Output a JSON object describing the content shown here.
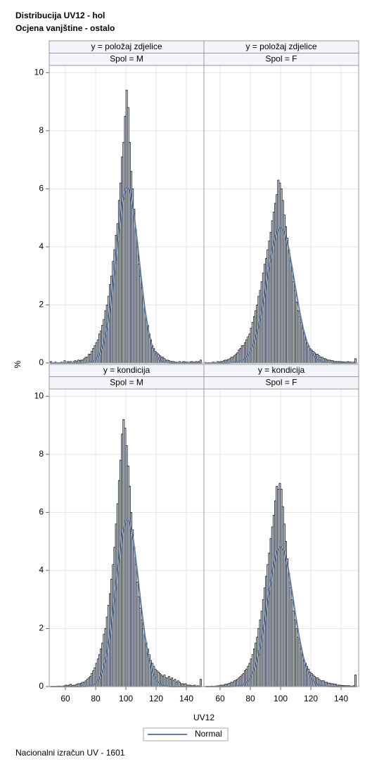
{
  "title": [
    "Distribucija UV12 - hol",
    "Ocjena vanjštine - ostalo"
  ],
  "x_label": "UV12",
  "y_label": "%",
  "legend": {
    "label": "Normal"
  },
  "footnote": "Nacionalni izračun UV - 1601",
  "chart_data": [
    {
      "type": "histogram",
      "strips": [
        "y = položaj zdjelice",
        "Spol = M"
      ],
      "color": "#cfd8e6",
      "xlim": [
        49.3,
        151.6
      ],
      "xticks": [
        60,
        80,
        100,
        120,
        140
      ],
      "ylim": [
        0,
        10.25
      ],
      "yticks": [
        0,
        2,
        4,
        6,
        8,
        10
      ],
      "grid": true,
      "bins": [
        50,
        51,
        52,
        53,
        54,
        55,
        56,
        57,
        58,
        59,
        60,
        61,
        62,
        63,
        64,
        65,
        66,
        67,
        68,
        69,
        70,
        71,
        72,
        73,
        74,
        75,
        76,
        77,
        78,
        79,
        80,
        81,
        82,
        83,
        84,
        85,
        86,
        87,
        88,
        89,
        90,
        91,
        92,
        93,
        94,
        95,
        96,
        97,
        98,
        99,
        100,
        101,
        102,
        103,
        104,
        105,
        106,
        107,
        108,
        109,
        110,
        111,
        112,
        113,
        114,
        115,
        116,
        117,
        118,
        119,
        120,
        121,
        122,
        123,
        124,
        125,
        126,
        127,
        128,
        129,
        130,
        131,
        132,
        133,
        134,
        135,
        136,
        137,
        138,
        139,
        140,
        141,
        142,
        143,
        144,
        145,
        146,
        147,
        148,
        149,
        150
      ],
      "values": [
        0.05,
        0,
        0,
        0.03,
        0,
        0,
        0,
        0.03,
        0,
        0.08,
        0,
        0.05,
        0.03,
        0.05,
        0,
        0.05,
        0.08,
        0.05,
        0.1,
        0.08,
        0.1,
        0.1,
        0.15,
        0.2,
        0.2,
        0.3,
        0.3,
        0.4,
        0.5,
        0.6,
        0.7,
        0.8,
        1.0,
        1.1,
        1.3,
        1.5,
        1.8,
        2.0,
        2.3,
        2.7,
        3.0,
        3.5,
        3.9,
        4.4,
        4.8,
        5.6,
        6.2,
        7.1,
        7.6,
        8.5,
        9.4,
        8.8,
        7.6,
        6.6,
        6.0,
        5.3,
        4.6,
        4.0,
        3.4,
        3.0,
        2.6,
        2.2,
        1.8,
        1.5,
        1.3,
        1.0,
        0.8,
        0.6,
        0.5,
        0.4,
        0.35,
        0.3,
        0.25,
        0.2,
        0.2,
        0.15,
        0.1,
        0.1,
        0.08,
        0.05,
        0.05,
        0.05,
        0.03,
        0.03,
        0.02,
        0.05,
        0.02,
        0.03,
        0.05,
        0.03,
        0.03,
        0.02,
        0.03,
        0.05,
        0.03,
        0.03,
        0.05,
        0.03,
        0.05,
        0.1
      ],
      "normal": {
        "color": "#667d9f",
        "x": [
          50,
          55,
          60,
          65,
          70,
          75,
          77.5,
          80,
          82.5,
          85,
          87.5,
          90,
          92.5,
          95,
          97.5,
          100,
          102.5,
          105,
          107.5,
          110,
          112.5,
          115,
          117.5,
          120,
          122.5,
          125,
          127.5,
          130,
          135,
          140,
          145,
          150
        ],
        "values": [
          0,
          0,
          0,
          0,
          0,
          0.01,
          0.05,
          0.12,
          0.29,
          0.63,
          1.21,
          2.08,
          3.21,
          4.43,
          5.47,
          6.05,
          5.98,
          5.29,
          4.19,
          2.97,
          1.88,
          1.07,
          0.54,
          0.25,
          0.1,
          0.04,
          0.01,
          0,
          0,
          0,
          0,
          0
        ]
      }
    },
    {
      "type": "histogram",
      "strips": [
        "y = položaj zdjelice",
        "Spol = F"
      ],
      "color": "#cfd8e6",
      "xlim": [
        49.3,
        151.6
      ],
      "xticks": [
        60,
        80,
        100,
        120,
        140
      ],
      "ylim": [
        0,
        10.25
      ],
      "yticks": [
        0,
        2,
        4,
        6,
        8,
        10
      ],
      "grid": true,
      "bins": [
        50,
        51,
        52,
        53,
        54,
        55,
        56,
        57,
        58,
        59,
        60,
        61,
        62,
        63,
        64,
        65,
        66,
        67,
        68,
        69,
        70,
        71,
        72,
        73,
        74,
        75,
        76,
        77,
        78,
        79,
        80,
        81,
        82,
        83,
        84,
        85,
        86,
        87,
        88,
        89,
        90,
        91,
        92,
        93,
        94,
        95,
        96,
        97,
        98,
        99,
        100,
        101,
        102,
        103,
        104,
        105,
        106,
        107,
        108,
        109,
        110,
        111,
        112,
        113,
        114,
        115,
        116,
        117,
        118,
        119,
        120,
        121,
        122,
        123,
        124,
        125,
        126,
        127,
        128,
        129,
        130,
        131,
        132,
        133,
        134,
        135,
        136,
        137,
        138,
        139,
        140,
        141,
        142,
        143,
        144,
        145,
        146,
        147,
        148,
        149,
        150
      ],
      "values": [
        0.02,
        0,
        0,
        0,
        0.02,
        0.03,
        0.02,
        0.02,
        0.05,
        0.03,
        0.05,
        0.05,
        0.08,
        0.1,
        0.1,
        0.12,
        0.15,
        0.2,
        0.2,
        0.25,
        0.3,
        0.35,
        0.45,
        0.5,
        0.6,
        0.6,
        0.7,
        0.8,
        0.9,
        1.0,
        1.2,
        1.4,
        1.6,
        1.8,
        2.0,
        2.3,
        2.5,
        2.8,
        3.1,
        3.4,
        3.6,
        3.9,
        4.2,
        4.5,
        4.9,
        5.2,
        5.5,
        5.8,
        6.3,
        6.2,
        6.0,
        5.6,
        5.1,
        4.7,
        4.3,
        3.9,
        3.5,
        3.2,
        2.8,
        2.5,
        2.1,
        1.8,
        1.6,
        1.4,
        1.2,
        1.0,
        0.8,
        0.7,
        0.6,
        0.5,
        0.45,
        0.4,
        0.35,
        0.3,
        0.3,
        0.25,
        0.2,
        0.2,
        0.15,
        0.15,
        0.12,
        0.1,
        0.1,
        0.08,
        0.08,
        0.05,
        0.05,
        0.05,
        0.05,
        0.05,
        0.04,
        0.04,
        0.03,
        0.03,
        0.05,
        0.03,
        0.03,
        0.02,
        0.03,
        0.15
      ],
      "normal": {
        "color": "#667d9f",
        "x": [
          50,
          55,
          60,
          65,
          70,
          75,
          77.5,
          80,
          82.5,
          85,
          87.5,
          90,
          92.5,
          95,
          97.5,
          100,
          102.5,
          105,
          107.5,
          110,
          112.5,
          115,
          117.5,
          120,
          122.5,
          125,
          127.5,
          130,
          135,
          140,
          145,
          150
        ],
        "values": [
          0,
          0,
          0,
          0,
          0.02,
          0.1,
          0.21,
          0.4,
          0.71,
          1.17,
          1.79,
          2.54,
          3.32,
          4.03,
          4.52,
          4.7,
          4.52,
          4.03,
          3.32,
          2.54,
          1.79,
          1.17,
          0.71,
          0.4,
          0.21,
          0.1,
          0.04,
          0.02,
          0,
          0,
          0,
          0
        ]
      }
    },
    {
      "type": "histogram",
      "strips": [
        "y = kondicija",
        "Spol = M"
      ],
      "color": "#cfd8e6",
      "xlim": [
        49.3,
        151.6
      ],
      "xticks": [
        60,
        80,
        100,
        120,
        140
      ],
      "ylim": [
        0,
        10.25
      ],
      "yticks": [
        0,
        2,
        4,
        6,
        8,
        10
      ],
      "grid": true,
      "bins": [
        50,
        51,
        52,
        53,
        54,
        55,
        56,
        57,
        58,
        59,
        60,
        61,
        62,
        63,
        64,
        65,
        66,
        67,
        68,
        69,
        70,
        71,
        72,
        73,
        74,
        75,
        76,
        77,
        78,
        79,
        80,
        81,
        82,
        83,
        84,
        85,
        86,
        87,
        88,
        89,
        90,
        91,
        92,
        93,
        94,
        95,
        96,
        97,
        98,
        99,
        100,
        101,
        102,
        103,
        104,
        105,
        106,
        107,
        108,
        109,
        110,
        111,
        112,
        113,
        114,
        115,
        116,
        117,
        118,
        119,
        120,
        121,
        122,
        123,
        124,
        125,
        126,
        127,
        128,
        129,
        130,
        131,
        132,
        133,
        134,
        135,
        136,
        137,
        138,
        139,
        140,
        141,
        142,
        143,
        144,
        145,
        146,
        147,
        148,
        149,
        150
      ],
      "values": [
        0,
        0,
        0,
        0,
        0,
        0.02,
        0.02,
        0,
        0.02,
        0.03,
        0.05,
        0.03,
        0.05,
        0.08,
        0.03,
        0.05,
        0.05,
        0.08,
        0.1,
        0.1,
        0.12,
        0.15,
        0.15,
        0.2,
        0.25,
        0.3,
        0.35,
        0.45,
        0.55,
        0.65,
        0.8,
        0.95,
        1.1,
        1.3,
        1.5,
        1.8,
        2.0,
        2.4,
        2.8,
        3.2,
        3.7,
        4.2,
        4.8,
        5.6,
        6.3,
        7.1,
        7.8,
        8.7,
        9.2,
        8.9,
        8.3,
        7.6,
        6.9,
        6.0,
        5.4,
        4.8,
        4.2,
        3.6,
        3.1,
        2.7,
        2.3,
        2.0,
        1.7,
        1.5,
        1.3,
        1.1,
        0.9,
        0.8,
        0.7,
        0.6,
        0.55,
        0.5,
        0.45,
        0.4,
        0.35,
        0.4,
        0.3,
        0.3,
        0.35,
        0.25,
        0.3,
        0.2,
        0.25,
        0.15,
        0.2,
        0.15,
        0.1,
        0.1,
        0.08,
        0.1,
        0.05,
        0.05,
        0.05,
        0.03,
        0.03,
        0.05,
        0.02,
        0.03,
        0.02,
        0.25
      ],
      "normal": {
        "color": "#667d9f",
        "x": [
          50,
          55,
          60,
          65,
          70,
          75,
          77.5,
          80,
          82.5,
          85,
          87.5,
          90,
          92.5,
          95,
          97.5,
          100,
          102.5,
          105,
          107.5,
          110,
          112.5,
          115,
          117.5,
          120,
          122.5,
          125,
          127.5,
          130,
          135,
          140,
          145,
          150
        ],
        "values": [
          0,
          0,
          0,
          0,
          0,
          0.01,
          0.04,
          0.11,
          0.28,
          0.6,
          1.15,
          1.98,
          3.05,
          4.21,
          5.2,
          5.75,
          5.68,
          5.03,
          3.98,
          2.82,
          1.79,
          1.02,
          0.52,
          0.23,
          0.1,
          0.03,
          0.01,
          0,
          0,
          0,
          0,
          0
        ]
      }
    },
    {
      "type": "histogram",
      "strips": [
        "y = kondicija",
        "Spol = F"
      ],
      "color": "#cfd8e6",
      "xlim": [
        49.3,
        151.6
      ],
      "xticks": [
        60,
        80,
        100,
        120,
        140
      ],
      "ylim": [
        0,
        10.25
      ],
      "yticks": [
        0,
        2,
        4,
        6,
        8,
        10
      ],
      "grid": true,
      "bins": [
        50,
        51,
        52,
        53,
        54,
        55,
        56,
        57,
        58,
        59,
        60,
        61,
        62,
        63,
        64,
        65,
        66,
        67,
        68,
        69,
        70,
        71,
        72,
        73,
        74,
        75,
        76,
        77,
        78,
        79,
        80,
        81,
        82,
        83,
        84,
        85,
        86,
        87,
        88,
        89,
        90,
        91,
        92,
        93,
        94,
        95,
        96,
        97,
        98,
        99,
        100,
        101,
        102,
        103,
        104,
        105,
        106,
        107,
        108,
        109,
        110,
        111,
        112,
        113,
        114,
        115,
        116,
        117,
        118,
        119,
        120,
        121,
        122,
        123,
        124,
        125,
        126,
        127,
        128,
        129,
        130,
        131,
        132,
        133,
        134,
        135,
        136,
        137,
        138,
        139,
        140,
        141,
        142,
        143,
        144,
        145,
        146,
        147,
        148,
        149,
        150
      ],
      "values": [
        0,
        0,
        0,
        0,
        0.02,
        0,
        0.02,
        0.02,
        0.03,
        0.03,
        0.05,
        0.05,
        0.05,
        0.08,
        0.08,
        0.1,
        0.12,
        0.15,
        0.15,
        0.2,
        0.22,
        0.25,
        0.3,
        0.35,
        0.4,
        0.45,
        0.55,
        0.6,
        0.7,
        0.8,
        0.95,
        1.1,
        1.3,
        1.5,
        1.7,
        2.0,
        2.3,
        2.6,
        3.0,
        3.4,
        3.8,
        4.2,
        4.6,
        5.1,
        5.5,
        5.9,
        6.4,
        6.9,
        6.8,
        7.0,
        6.8,
        6.2,
        5.6,
        5.0,
        4.4,
        3.9,
        3.4,
        3.0,
        2.6,
        2.3,
        2.0,
        1.7,
        1.5,
        1.3,
        1.1,
        0.9,
        0.8,
        0.7,
        0.6,
        0.5,
        0.45,
        0.4,
        0.35,
        0.3,
        0.3,
        0.25,
        0.2,
        0.2,
        0.2,
        0.15,
        0.15,
        0.12,
        0.12,
        0.1,
        0.1,
        0.08,
        0.08,
        0.05,
        0.05,
        0.05,
        0.04,
        0.04,
        0.03,
        0.03,
        0.03,
        0.03,
        0.02,
        0.02,
        0.03,
        0.4
      ],
      "normal": {
        "color": "#667d9f",
        "x": [
          50,
          55,
          60,
          65,
          70,
          75,
          77.5,
          80,
          82.5,
          85,
          87.5,
          90,
          92.5,
          95,
          97.5,
          100,
          102.5,
          105,
          107.5,
          110,
          112.5,
          115,
          117.5,
          120,
          122.5,
          125,
          127.5,
          130,
          135,
          140,
          145,
          150
        ],
        "values": [
          0,
          0,
          0,
          0,
          0.01,
          0.06,
          0.15,
          0.3,
          0.58,
          1.02,
          1.65,
          2.43,
          3.29,
          4.08,
          4.65,
          4.85,
          4.65,
          4.08,
          3.29,
          2.43,
          1.65,
          1.02,
          0.58,
          0.3,
          0.15,
          0.06,
          0.03,
          0.01,
          0,
          0,
          0,
          0
        ]
      }
    }
  ]
}
